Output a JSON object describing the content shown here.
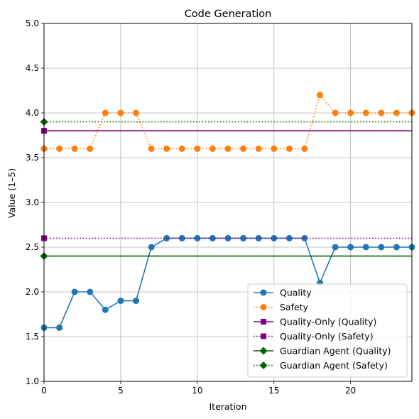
{
  "chart_data": {
    "type": "line",
    "title": "Code Generation",
    "xlabel": "Iteration",
    "ylabel": "Value (1–5)",
    "xlim": [
      0,
      24
    ],
    "ylim": [
      1.0,
      5.0
    ],
    "xticks": [
      0,
      5,
      10,
      15,
      20
    ],
    "yticks": [
      1.0,
      1.5,
      2.0,
      2.5,
      3.0,
      3.5,
      4.0,
      4.5,
      5.0
    ],
    "ytick_labels": [
      "1.0",
      "1.5",
      "2.0",
      "2.5",
      "3.0",
      "3.5",
      "4.0",
      "4.5",
      "5.0"
    ],
    "grid": true,
    "legend_position": "lower-right",
    "series": [
      {
        "name": "Quality",
        "color": "#1f77b4",
        "linestyle": "solid",
        "marker": "circle",
        "x": [
          0,
          1,
          2,
          3,
          4,
          5,
          6,
          7,
          8,
          9,
          10,
          11,
          12,
          13,
          14,
          15,
          16,
          17,
          18,
          19,
          20,
          21,
          22,
          23,
          24
        ],
        "y": [
          1.6,
          1.6,
          2.0,
          2.0,
          1.8,
          1.9,
          1.9,
          2.5,
          2.6,
          2.6,
          2.6,
          2.6,
          2.6,
          2.6,
          2.6,
          2.6,
          2.6,
          2.6,
          2.1,
          2.5,
          2.5,
          2.5,
          2.5,
          2.5,
          2.5
        ]
      },
      {
        "name": "Safety",
        "color": "#ff7f0e",
        "linestyle": "dotted",
        "marker": "circle",
        "x": [
          0,
          1,
          2,
          3,
          4,
          5,
          6,
          7,
          8,
          9,
          10,
          11,
          12,
          13,
          14,
          15,
          16,
          17,
          18,
          19,
          20,
          21,
          22,
          23,
          24
        ],
        "y": [
          3.6,
          3.6,
          3.6,
          3.6,
          4.0,
          4.0,
          4.0,
          3.6,
          3.6,
          3.6,
          3.6,
          3.6,
          3.6,
          3.6,
          3.6,
          3.6,
          3.6,
          3.6,
          4.2,
          4.0,
          4.0,
          4.0,
          4.0,
          4.0,
          4.0
        ]
      },
      {
        "name": "Quality-Only (Quality)",
        "color": "#800080",
        "linestyle": "solid",
        "marker": "square",
        "x": [
          0,
          24
        ],
        "y": [
          3.8,
          3.8
        ]
      },
      {
        "name": "Quality-Only (Safety)",
        "color": "#800080",
        "linestyle": "dotted",
        "marker": "square",
        "x": [
          0,
          24
        ],
        "y": [
          2.6,
          2.6
        ]
      },
      {
        "name": "Guardian Agent (Quality)",
        "color": "#006400",
        "linestyle": "solid",
        "marker": "diamond",
        "x": [
          0,
          24
        ],
        "y": [
          2.4,
          2.4
        ]
      },
      {
        "name": "Guardian Agent (Safety)",
        "color": "#006400",
        "linestyle": "dotted",
        "marker": "diamond",
        "x": [
          0,
          24
        ],
        "y": [
          3.9,
          3.9
        ]
      }
    ]
  }
}
